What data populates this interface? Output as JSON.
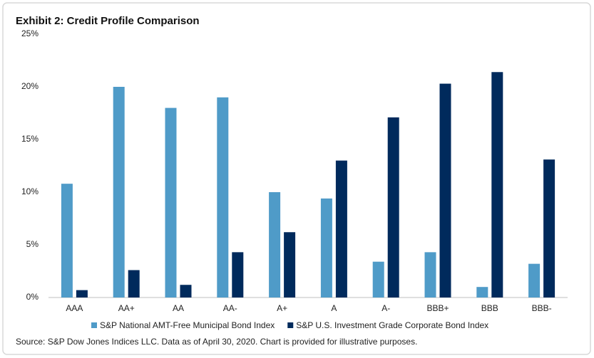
{
  "chart_data": {
    "type": "bar",
    "title": "Exhibit 2: Credit Profile Comparison",
    "categories": [
      "AAA",
      "AA+",
      "AA",
      "AA-",
      "A+",
      "A",
      "A-",
      "BBB+",
      "BBB",
      "BBB-"
    ],
    "series": [
      {
        "name": "S&P National AMT-Free Municipal Bond Index",
        "color": "#4f9bc8",
        "values": [
          10.8,
          20,
          18,
          19,
          10,
          9.4,
          3.4,
          4.3,
          1,
          3.2
        ]
      },
      {
        "name": "S&P U.S. Investment Grade Corporate Bond Index",
        "color": "#002a5c",
        "values": [
          0.7,
          2.6,
          1.2,
          4.3,
          6.2,
          13,
          17.1,
          20.3,
          21.4,
          13.1
        ]
      }
    ],
    "ylim": [
      0,
      25
    ],
    "yticks": [
      {
        "value": 0,
        "label": "0%"
      },
      {
        "value": 5,
        "label": "5%"
      },
      {
        "value": 10,
        "label": "10%"
      },
      {
        "value": 15,
        "label": "15%"
      },
      {
        "value": 20,
        "label": "20%"
      },
      {
        "value": 25,
        "label": "25%"
      }
    ],
    "grid": false,
    "legend": "bottom",
    "source": "Source: S&P Dow Jones Indices LLC. Data as of April 30, 2020. Chart is provided for illustrative purposes."
  }
}
